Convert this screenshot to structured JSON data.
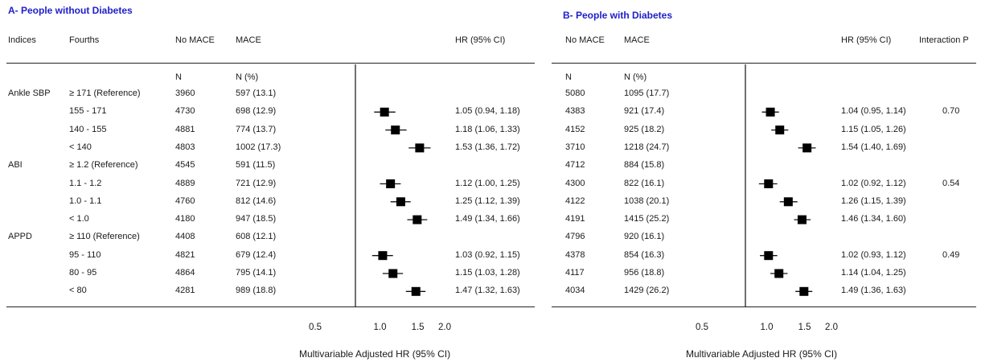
{
  "chart_data": [
    {
      "type": "forest",
      "title": "A- People without Diabetes",
      "columns": {
        "indices": "Indices",
        "fourths": "Fourths",
        "no_mace": "No MACE",
        "mace": "MACE",
        "hr": "HR (95% CI)",
        "n_label": "N",
        "pct_label": "N  (%)"
      },
      "xlabel": "Multivariable Adjusted HR (95% CI)",
      "xticks": [
        "0.5",
        "1.0",
        "1.5",
        "2.0"
      ],
      "xlim": [
        0.5,
        2.0
      ],
      "scale": "log",
      "rows": [
        {
          "index": "Ankle SBP",
          "fourth": "≥ 171 (Reference)",
          "no_mace": "3960",
          "mace": "597 (13.1)",
          "hr_text": "",
          "hr": null
        },
        {
          "index": "",
          "fourth": "155 - 171",
          "no_mace": "4730",
          "mace": "698 (12.9)",
          "hr_text": "1.05 (0.94, 1.18)",
          "hr": 1.05,
          "lo": 0.94,
          "hi": 1.18
        },
        {
          "index": "",
          "fourth": "140 - 155",
          "no_mace": "4881",
          "mace": "774 (13.7)",
          "hr_text": "1.18 (1.06, 1.33)",
          "hr": 1.18,
          "lo": 1.06,
          "hi": 1.33
        },
        {
          "index": "",
          "fourth": "< 140",
          "no_mace": "4803",
          "mace": "1002 (17.3)",
          "hr_text": "1.53 (1.36, 1.72)",
          "hr": 1.53,
          "lo": 1.36,
          "hi": 1.72
        },
        {
          "index": "ABI",
          "fourth": "≥ 1.2 (Reference)",
          "no_mace": "4545",
          "mace": "591 (11.5)",
          "hr_text": "",
          "hr": null
        },
        {
          "index": "",
          "fourth": "1.1 - 1.2",
          "no_mace": "4889",
          "mace": "721 (12.9)",
          "hr_text": "1.12 (1.00, 1.25)",
          "hr": 1.12,
          "lo": 1.0,
          "hi": 1.25
        },
        {
          "index": "",
          "fourth": "1.0 - 1.1",
          "no_mace": "4760",
          "mace": "812 (14.6)",
          "hr_text": "1.25 (1.12, 1.39)",
          "hr": 1.25,
          "lo": 1.12,
          "hi": 1.39
        },
        {
          "index": "",
          "fourth": "< 1.0",
          "no_mace": "4180",
          "mace": "947 (18.5)",
          "hr_text": "1.49 (1.34, 1.66)",
          "hr": 1.49,
          "lo": 1.34,
          "hi": 1.66
        },
        {
          "index": "APPD",
          "fourth": "≥ 110 (Reference)",
          "no_mace": "4408",
          "mace": "608 (12.1)",
          "hr_text": "",
          "hr": null
        },
        {
          "index": "",
          "fourth": "95 - 110",
          "no_mace": "4821",
          "mace": "679 (12.4)",
          "hr_text": "1.03 (0.92, 1.15)",
          "hr": 1.03,
          "lo": 0.92,
          "hi": 1.15
        },
        {
          "index": "",
          "fourth": "80 - 95",
          "no_mace": "4864",
          "mace": "795 (14.1)",
          "hr_text": "1.15 (1.03, 1.28)",
          "hr": 1.15,
          "lo": 1.03,
          "hi": 1.28
        },
        {
          "index": "",
          "fourth": "< 80",
          "no_mace": "4281",
          "mace": "989 (18.8)",
          "hr_text": "1.47 (1.32, 1.63)",
          "hr": 1.47,
          "lo": 1.32,
          "hi": 1.63
        }
      ]
    },
    {
      "type": "forest",
      "title": "B- People with Diabetes",
      "columns": {
        "no_mace": "No MACE",
        "mace": "MACE",
        "hr": "HR (95% CI)",
        "interaction": "Interaction P",
        "n_label": "N",
        "pct_label": "N  (%)"
      },
      "xlabel": "Multivariable Adjusted HR (95% CI)",
      "xticks": [
        "0.5",
        "1.0",
        "1.5",
        "2.0"
      ],
      "xlim": [
        0.5,
        2.0
      ],
      "scale": "log",
      "rows": [
        {
          "no_mace": "5080",
          "mace": "1095 (17.7)",
          "hr_text": "",
          "hr": null,
          "interaction": ""
        },
        {
          "no_mace": "4383",
          "mace": "921 (17.4)",
          "hr_text": "1.04 (0.95, 1.14)",
          "hr": 1.04,
          "lo": 0.95,
          "hi": 1.14,
          "interaction": "0.70"
        },
        {
          "no_mace": "4152",
          "mace": "925 (18.2)",
          "hr_text": "1.15 (1.05, 1.26)",
          "hr": 1.15,
          "lo": 1.05,
          "hi": 1.26,
          "interaction": ""
        },
        {
          "no_mace": "3710",
          "mace": "1218 (24.7)",
          "hr_text": "1.54 (1.40, 1.69)",
          "hr": 1.54,
          "lo": 1.4,
          "hi": 1.69,
          "interaction": ""
        },
        {
          "no_mace": "4712",
          "mace": "884 (15.8)",
          "hr_text": "",
          "hr": null,
          "interaction": ""
        },
        {
          "no_mace": "4300",
          "mace": "822 (16.1)",
          "hr_text": "1.02 (0.92, 1.12)",
          "hr": 1.02,
          "lo": 0.92,
          "hi": 1.12,
          "interaction": "0.54"
        },
        {
          "no_mace": "4122",
          "mace": "1038 (20.1)",
          "hr_text": "1.26 (1.15, 1.39)",
          "hr": 1.26,
          "lo": 1.15,
          "hi": 1.39,
          "interaction": ""
        },
        {
          "no_mace": "4191",
          "mace": "1415 (25.2)",
          "hr_text": "1.46 (1.34, 1.60)",
          "hr": 1.46,
          "lo": 1.34,
          "hi": 1.6,
          "interaction": ""
        },
        {
          "no_mace": "4796",
          "mace": "920 (16.1)",
          "hr_text": "",
          "hr": null,
          "interaction": ""
        },
        {
          "no_mace": "4378",
          "mace": "854 (16.3)",
          "hr_text": "1.02 (0.93, 1.12)",
          "hr": 1.02,
          "lo": 0.93,
          "hi": 1.12,
          "interaction": "0.49"
        },
        {
          "no_mace": "4117",
          "mace": "956 (18.8)",
          "hr_text": "1.14 (1.04, 1.25)",
          "hr": 1.14,
          "lo": 1.04,
          "hi": 1.25,
          "interaction": ""
        },
        {
          "no_mace": "4034",
          "mace": "1429 (26.2)",
          "hr_text": "1.49 (1.36, 1.63)",
          "hr": 1.49,
          "lo": 1.36,
          "hi": 1.63,
          "interaction": ""
        }
      ]
    }
  ]
}
